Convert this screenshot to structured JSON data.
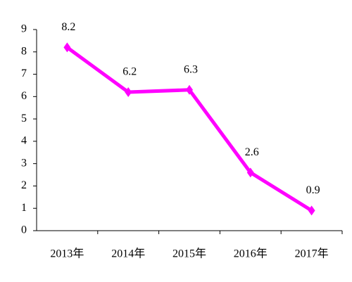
{
  "chart_data": {
    "type": "line",
    "categories": [
      "2013年",
      "2014年",
      "2015年",
      "2016年",
      "2017年"
    ],
    "values": [
      8.2,
      6.2,
      6.3,
      2.6,
      0.9
    ],
    "color": "#ff00ff",
    "ylim": [
      0,
      9
    ],
    "yticks": [
      0,
      1,
      2,
      3,
      4,
      5,
      6,
      7,
      8,
      9
    ]
  }
}
